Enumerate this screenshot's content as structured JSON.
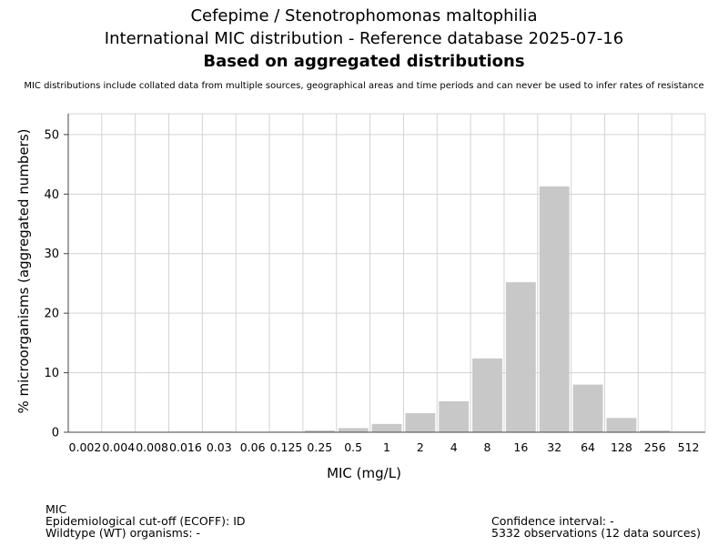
{
  "header": {
    "title_line1": "Cefepime / Stenotrophomonas maltophilia",
    "title_line2": "International MIC distribution - Reference database 2025-07-16",
    "title_line3": "Based on aggregated distributions",
    "disclaimer": "MIC distributions include collated data from multiple sources, geographical areas and time periods and can never be used to infer rates of resistance"
  },
  "footer": {
    "mic_label": "MIC",
    "ecoff": "Epidemiological cut-off (ECOFF): ID",
    "wildtype": "Wildtype (WT) organisms:  -",
    "confidence": "Confidence interval: -",
    "observations": "5332 observations (12 data sources)"
  },
  "chart_data": {
    "type": "bar",
    "xlabel": "MIC (mg/L)",
    "ylabel": "% microorganisms (aggregated numbers)",
    "ylim": [
      0,
      53.5
    ],
    "yticks": [
      0,
      10,
      20,
      30,
      40,
      50
    ],
    "grid": true,
    "categories": [
      "0.002",
      "0.004",
      "0.008",
      "0.016",
      "0.03",
      "0.06",
      "0.125",
      "0.25",
      "0.5",
      "1",
      "2",
      "4",
      "8",
      "16",
      "32",
      "64",
      "128",
      "256",
      "512"
    ],
    "values": [
      0,
      0,
      0,
      0.1,
      0.1,
      0,
      0.1,
      0.3,
      0.7,
      1.4,
      3.2,
      5.2,
      12.4,
      25.2,
      41.3,
      8.0,
      2.4,
      0.3,
      0.1
    ],
    "colors": {
      "bar": "#c8c8c8",
      "grid": "#d3d3d3",
      "axis": "#444444"
    }
  }
}
